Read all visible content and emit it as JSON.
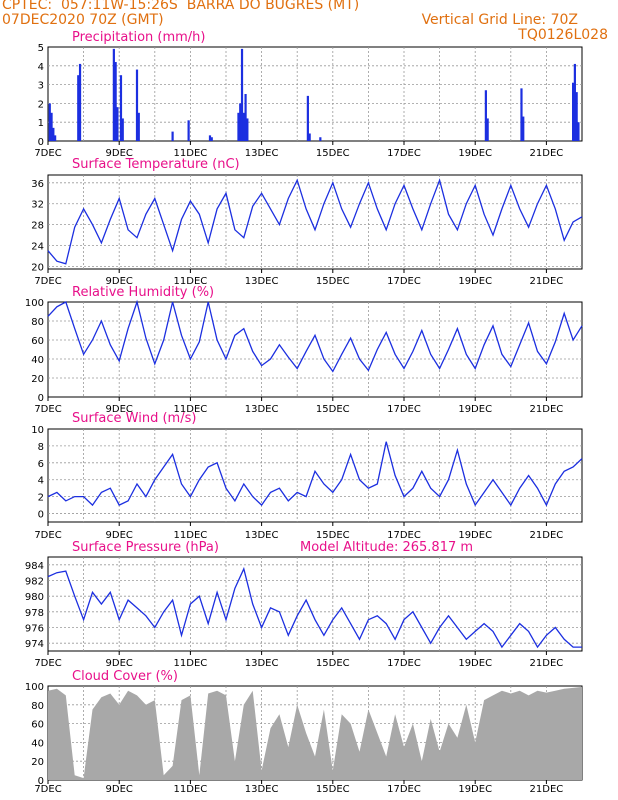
{
  "header": {
    "line1": "CPTEC:  057:11W-15:26S  BARRA DO BUGRES (MT)",
    "line2_left": "07DEC2020 70Z (GMT)",
    "line2_right": "Vertical Grid Line: 70Z",
    "line3_right": "TQ0126L028"
  },
  "colors": {
    "header_text": "#e07010",
    "panel_title": "#e8108a",
    "series_line": "#1c2fe0",
    "cloud_fill": "#a8a8a8",
    "grid": "#999999"
  },
  "x_axis": {
    "range_days": [
      7,
      22
    ],
    "labels": [
      "7DEC",
      "9DEC",
      "11DEC",
      "13DEC",
      "15DEC",
      "17DEC",
      "19DEC",
      "21DEC"
    ],
    "label_days": [
      7,
      9,
      11,
      13,
      15,
      17,
      19,
      21
    ]
  },
  "chart_data": [
    {
      "type": "bar",
      "title": "Precipitation  (mm/h)",
      "ylim": [
        0,
        5
      ],
      "yticks": [
        0,
        1,
        2,
        3,
        4,
        5
      ],
      "x": [
        7.05,
        7.1,
        7.15,
        7.2,
        7.85,
        7.9,
        8.85,
        8.9,
        8.95,
        9.05,
        9.1,
        9.5,
        9.55,
        10.5,
        10.95,
        11.55,
        11.6,
        12.35,
        12.4,
        12.45,
        12.5,
        12.55,
        12.6,
        14.3,
        14.35,
        14.65,
        19.3,
        19.35,
        20.3,
        20.35,
        21.75,
        21.8,
        21.85,
        21.9
      ],
      "values": [
        2.0,
        1.5,
        0.7,
        0.3,
        3.5,
        4.1,
        4.9,
        4.2,
        1.8,
        3.5,
        1.2,
        3.8,
        1.5,
        0.5,
        1.1,
        0.3,
        0.2,
        1.5,
        2.0,
        4.9,
        1.5,
        2.5,
        1.2,
        2.4,
        0.4,
        0.2,
        2.7,
        1.2,
        2.8,
        1.3,
        3.1,
        4.1,
        2.6,
        1.0
      ]
    },
    {
      "type": "line",
      "title": "Surface Temperature (nC)",
      "ylim": [
        19.5,
        37.5
      ],
      "yticks": [
        20,
        24,
        28,
        32,
        36
      ],
      "x": [
        7.0,
        7.25,
        7.5,
        7.75,
        8.0,
        8.25,
        8.5,
        8.75,
        9.0,
        9.25,
        9.5,
        9.75,
        10.0,
        10.25,
        10.5,
        10.75,
        11.0,
        11.25,
        11.5,
        11.75,
        12.0,
        12.25,
        12.5,
        12.75,
        13.0,
        13.25,
        13.5,
        13.75,
        14.0,
        14.25,
        14.5,
        14.75,
        15.0,
        15.25,
        15.5,
        15.75,
        16.0,
        16.25,
        16.5,
        16.75,
        17.0,
        17.25,
        17.5,
        17.75,
        18.0,
        18.25,
        18.5,
        18.75,
        19.0,
        19.25,
        19.5,
        19.75,
        20.0,
        20.25,
        20.5,
        20.75,
        21.0,
        21.25,
        21.5,
        21.75,
        22.0
      ],
      "values": [
        23.0,
        21.0,
        20.5,
        27.5,
        31.0,
        28.0,
        24.5,
        29.0,
        33.0,
        27.0,
        25.5,
        30.0,
        33.0,
        28.0,
        23.0,
        29.0,
        32.5,
        30.0,
        24.5,
        31.0,
        34.0,
        27.0,
        25.5,
        31.5,
        34.0,
        31.0,
        28.0,
        33.0,
        36.5,
        31.0,
        27.0,
        32.0,
        36.0,
        31.0,
        27.5,
        32.0,
        36.0,
        31.0,
        27.0,
        32.0,
        35.5,
        31.0,
        27.0,
        32.0,
        36.5,
        30.0,
        27.0,
        32.0,
        35.5,
        30.0,
        26.0,
        31.0,
        35.5,
        31.0,
        27.5,
        32.0,
        35.5,
        31.0,
        25.0,
        28.5,
        29.5
      ]
    },
    {
      "type": "line",
      "title": "Relative Humidity (%)",
      "ylim": [
        0,
        100
      ],
      "yticks": [
        0,
        20,
        40,
        60,
        80,
        100
      ],
      "x": [
        7.0,
        7.25,
        7.5,
        7.75,
        8.0,
        8.25,
        8.5,
        8.75,
        9.0,
        9.25,
        9.5,
        9.75,
        10.0,
        10.25,
        10.5,
        10.75,
        11.0,
        11.25,
        11.5,
        11.75,
        12.0,
        12.25,
        12.5,
        12.75,
        13.0,
        13.25,
        13.5,
        13.75,
        14.0,
        14.25,
        14.5,
        14.75,
        15.0,
        15.25,
        15.5,
        15.75,
        16.0,
        16.25,
        16.5,
        16.75,
        17.0,
        17.25,
        17.5,
        17.75,
        18.0,
        18.25,
        18.5,
        18.75,
        19.0,
        19.25,
        19.5,
        19.75,
        20.0,
        20.25,
        20.5,
        20.75,
        21.0,
        21.25,
        21.5,
        21.75,
        22.0
      ],
      "values": [
        85.0,
        95.0,
        100.0,
        72.0,
        45.0,
        60.0,
        80.0,
        55.0,
        38.0,
        72.0,
        100.0,
        62.0,
        35.0,
        60.0,
        100.0,
        65.0,
        40.0,
        58.0,
        100.0,
        60.0,
        40.0,
        65.0,
        72.0,
        48.0,
        33.0,
        40.0,
        55.0,
        42.0,
        30.0,
        48.0,
        65.0,
        40.0,
        27.0,
        45.0,
        62.0,
        40.0,
        28.0,
        50.0,
        68.0,
        45.0,
        30.0,
        48.0,
        70.0,
        45.0,
        30.0,
        50.0,
        72.0,
        45.0,
        30.0,
        55.0,
        75.0,
        45.0,
        32.0,
        55.0,
        78.0,
        48.0,
        35.0,
        58.0,
        88.0,
        60.0,
        75.0
      ]
    },
    {
      "type": "line",
      "title": "Surface Wind (m/s)",
      "ylim": [
        -1,
        10
      ],
      "yticks": [
        0,
        2,
        4,
        6,
        8,
        10
      ],
      "x": [
        7.0,
        7.25,
        7.5,
        7.75,
        8.0,
        8.25,
        8.5,
        8.75,
        9.0,
        9.25,
        9.5,
        9.75,
        10.0,
        10.25,
        10.5,
        10.75,
        11.0,
        11.25,
        11.5,
        11.75,
        12.0,
        12.25,
        12.5,
        12.75,
        13.0,
        13.25,
        13.5,
        13.75,
        14.0,
        14.25,
        14.5,
        14.75,
        15.0,
        15.25,
        15.5,
        15.75,
        16.0,
        16.25,
        16.5,
        16.75,
        17.0,
        17.25,
        17.5,
        17.75,
        18.0,
        18.25,
        18.5,
        18.75,
        19.0,
        19.25,
        19.5,
        19.75,
        20.0,
        20.25,
        20.5,
        20.75,
        21.0,
        21.25,
        21.5,
        21.75,
        22.0
      ],
      "values": [
        2.0,
        2.5,
        1.5,
        2.0,
        2.0,
        1.0,
        2.5,
        3.0,
        1.0,
        1.5,
        3.5,
        2.0,
        4.0,
        5.5,
        7.0,
        3.5,
        2.0,
        4.0,
        5.5,
        6.0,
        3.0,
        1.5,
        3.5,
        2.0,
        1.0,
        2.5,
        3.0,
        1.5,
        2.5,
        2.0,
        5.0,
        3.5,
        2.5,
        4.0,
        7.0,
        4.0,
        3.0,
        3.5,
        8.5,
        4.5,
        2.0,
        3.0,
        5.0,
        3.0,
        2.0,
        4.0,
        7.5,
        3.5,
        1.0,
        2.5,
        4.0,
        2.5,
        1.0,
        3.0,
        4.5,
        3.0,
        1.0,
        3.5,
        5.0,
        5.5,
        6.5
      ]
    },
    {
      "type": "line",
      "title": "Surface Pressure (hPa)",
      "subtitle": "Model Altitude: 265.817  m",
      "ylim": [
        973,
        985
      ],
      "yticks": [
        974,
        976,
        978,
        980,
        982,
        984
      ],
      "x": [
        7.0,
        7.25,
        7.5,
        7.75,
        8.0,
        8.25,
        8.5,
        8.75,
        9.0,
        9.25,
        9.5,
        9.75,
        10.0,
        10.25,
        10.5,
        10.75,
        11.0,
        11.25,
        11.5,
        11.75,
        12.0,
        12.25,
        12.5,
        12.75,
        13.0,
        13.25,
        13.5,
        13.75,
        14.0,
        14.25,
        14.5,
        14.75,
        15.0,
        15.25,
        15.5,
        15.75,
        16.0,
        16.25,
        16.5,
        16.75,
        17.0,
        17.25,
        17.5,
        17.75,
        18.0,
        18.25,
        18.5,
        18.75,
        19.0,
        19.25,
        19.5,
        19.75,
        20.0,
        20.25,
        20.5,
        20.75,
        21.0,
        21.25,
        21.5,
        21.75,
        22.0
      ],
      "values": [
        982.5,
        983.0,
        983.2,
        980.0,
        977.0,
        980.5,
        979.0,
        980.5,
        977.0,
        979.5,
        978.5,
        977.5,
        976.0,
        978.0,
        979.5,
        975.0,
        979.0,
        980.0,
        976.5,
        980.5,
        977.0,
        981.0,
        983.5,
        979.0,
        976.0,
        978.5,
        978.0,
        975.0,
        977.5,
        979.5,
        977.0,
        975.0,
        977.0,
        978.5,
        976.5,
        974.5,
        977.0,
        977.5,
        976.5,
        974.5,
        977.0,
        978.0,
        976.0,
        974.0,
        976.0,
        977.5,
        976.0,
        974.5,
        975.5,
        976.5,
        975.5,
        973.5,
        975.0,
        976.5,
        975.5,
        973.5,
        975.0,
        976.0,
        974.5,
        973.5,
        973.5
      ]
    },
    {
      "type": "area",
      "title": "Cloud Cover (%)",
      "ylim": [
        0,
        100
      ],
      "yticks": [
        0,
        20,
        40,
        60,
        80,
        100
      ],
      "x": [
        7.0,
        7.25,
        7.5,
        7.75,
        8.0,
        8.25,
        8.5,
        8.75,
        9.0,
        9.25,
        9.5,
        9.75,
        10.0,
        10.25,
        10.5,
        10.75,
        11.0,
        11.25,
        11.5,
        11.75,
        12.0,
        12.25,
        12.5,
        12.75,
        13.0,
        13.25,
        13.5,
        13.75,
        14.0,
        14.25,
        14.5,
        14.75,
        15.0,
        15.25,
        15.5,
        15.75,
        16.0,
        16.25,
        16.5,
        16.75,
        17.0,
        17.25,
        17.5,
        17.75,
        18.0,
        18.25,
        18.5,
        18.75,
        19.0,
        19.25,
        19.5,
        19.75,
        20.0,
        20.25,
        20.5,
        20.75,
        21.0,
        21.25,
        21.5,
        21.75,
        22.0
      ],
      "values": [
        95.0,
        97.0,
        90.0,
        5.0,
        2.0,
        75.0,
        88.0,
        92.0,
        80.0,
        95.0,
        90.0,
        80.0,
        85.0,
        5.0,
        15.0,
        85.0,
        90.0,
        5.0,
        92.0,
        95.0,
        90.0,
        20.0,
        80.0,
        95.0,
        10.0,
        55.0,
        70.0,
        35.0,
        80.0,
        50.0,
        25.0,
        75.0,
        10.0,
        70.0,
        60.0,
        30.0,
        75.0,
        50.0,
        25.0,
        70.0,
        35.0,
        60.0,
        20.0,
        65.0,
        30.0,
        60.0,
        45.0,
        80.0,
        40.0,
        85.0,
        90.0,
        95.0,
        92.0,
        95.0,
        90.0,
        95.0,
        93.0,
        95.0,
        97.0,
        98.0,
        99.0
      ]
    }
  ]
}
